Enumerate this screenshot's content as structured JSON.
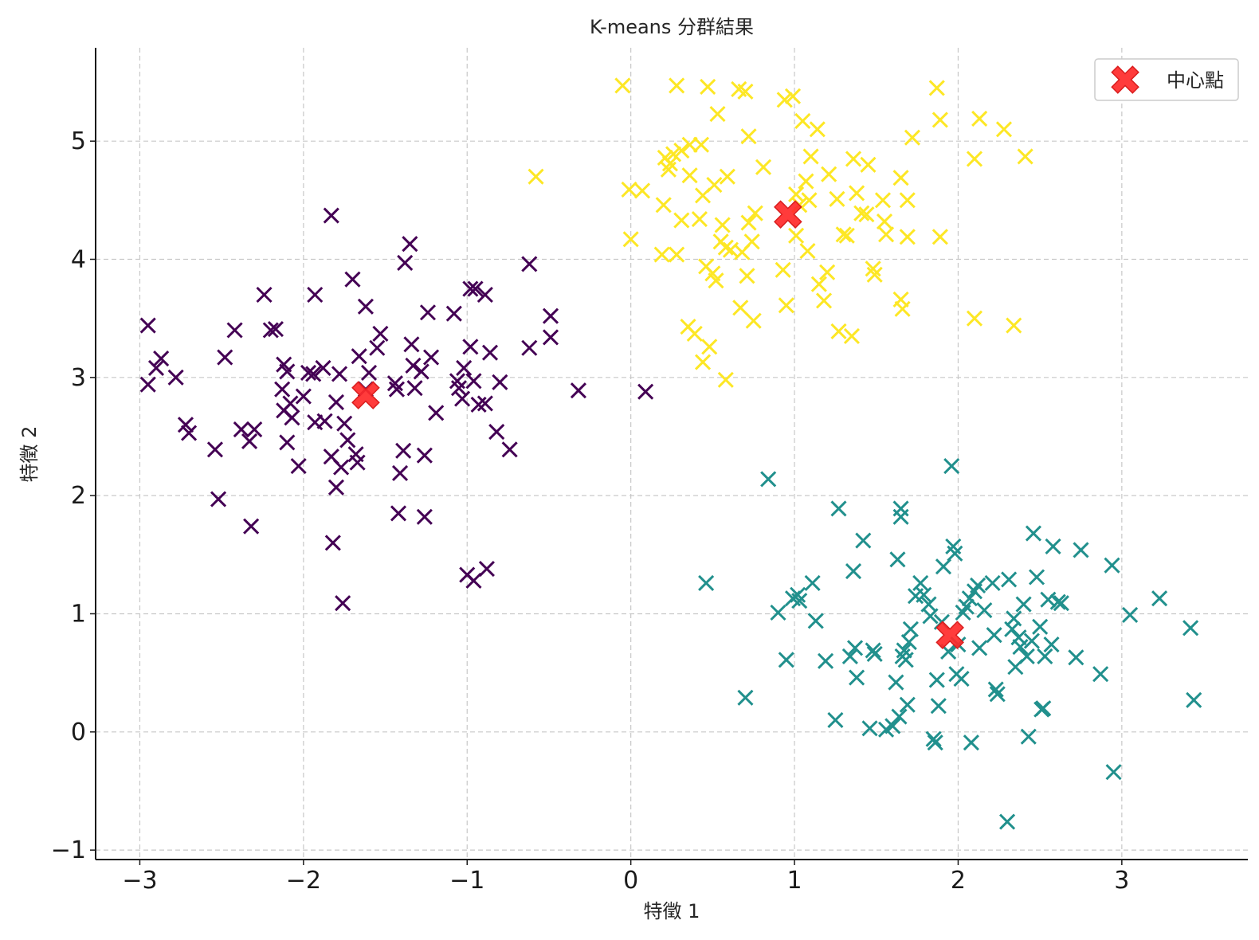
{
  "chart_data": {
    "type": "scatter",
    "title": "K-means 分群結果",
    "xlabel": "特徵 1",
    "ylabel": "特徵 2",
    "xlim": [
      -3.27,
      3.77
    ],
    "ylim": [
      -1.08,
      5.79
    ],
    "xticks": [
      -3,
      -2,
      -1,
      0,
      1,
      2,
      3
    ],
    "xtick_labels": [
      "−3",
      "−2",
      "−1",
      "0",
      "1",
      "2",
      "3"
    ],
    "yticks": [
      -1,
      0,
      1,
      2,
      3,
      4,
      5
    ],
    "ytick_labels": [
      "−1",
      "0",
      "1",
      "2",
      "3",
      "4",
      "5"
    ],
    "grid": true,
    "legend_position": "top-right",
    "marker": "x",
    "clusters": [
      {
        "color": "#440154",
        "points": [
          [
            -2.95,
            3.44
          ],
          [
            -2.87,
            3.16
          ],
          [
            -2.9,
            3.08
          ],
          [
            -2.78,
            3.0
          ],
          [
            -2.95,
            2.94
          ],
          [
            -2.72,
            2.6
          ],
          [
            -2.7,
            2.53
          ],
          [
            -2.54,
            2.39
          ],
          [
            -2.52,
            1.97
          ],
          [
            -2.48,
            3.17
          ],
          [
            -2.42,
            3.4
          ],
          [
            -2.38,
            2.56
          ],
          [
            -2.33,
            2.46
          ],
          [
            -2.3,
            2.56
          ],
          [
            -2.32,
            1.74
          ],
          [
            -2.24,
            3.7
          ],
          [
            -2.2,
            3.4
          ],
          [
            -2.17,
            3.41
          ],
          [
            -2.13,
            2.9
          ],
          [
            -2.12,
            3.11
          ],
          [
            -2.12,
            2.72
          ],
          [
            -2.1,
            3.05
          ],
          [
            -2.1,
            2.45
          ],
          [
            -2.08,
            2.78
          ],
          [
            -2.07,
            2.66
          ],
          [
            -2.03,
            2.25
          ],
          [
            -2.0,
            2.84
          ],
          [
            -1.97,
            3.04
          ],
          [
            -1.93,
            3.7
          ],
          [
            -1.94,
            3.03
          ],
          [
            -1.93,
            2.62
          ],
          [
            -1.88,
            3.08
          ],
          [
            -1.87,
            2.63
          ],
          [
            -1.83,
            4.37
          ],
          [
            -1.83,
            2.33
          ],
          [
            -1.82,
            1.6
          ],
          [
            -1.8,
            2.79
          ],
          [
            -1.8,
            2.07
          ],
          [
            -1.78,
            3.03
          ],
          [
            -1.77,
            2.24
          ],
          [
            -1.76,
            1.09
          ],
          [
            -1.75,
            2.61
          ],
          [
            -1.73,
            2.47
          ],
          [
            -1.7,
            3.83
          ],
          [
            -1.68,
            2.35
          ],
          [
            -1.67,
            2.28
          ],
          [
            -1.66,
            3.18
          ],
          [
            -1.62,
            3.6
          ],
          [
            -1.62,
            2.9
          ],
          [
            -1.6,
            3.04
          ],
          [
            -1.55,
            3.25
          ],
          [
            -1.53,
            3.37
          ],
          [
            -1.44,
            2.95
          ],
          [
            -1.43,
            2.9
          ],
          [
            -1.42,
            1.85
          ],
          [
            -1.41,
            2.19
          ],
          [
            -1.39,
            2.38
          ],
          [
            -1.38,
            3.97
          ],
          [
            -1.35,
            4.13
          ],
          [
            -1.34,
            3.28
          ],
          [
            -1.33,
            3.1
          ],
          [
            -1.32,
            2.91
          ],
          [
            -1.28,
            3.05
          ],
          [
            -1.26,
            2.34
          ],
          [
            -1.26,
            1.82
          ],
          [
            -1.24,
            3.55
          ],
          [
            -1.22,
            3.17
          ],
          [
            -1.19,
            2.7
          ],
          [
            -1.08,
            3.54
          ],
          [
            -1.06,
            2.97
          ],
          [
            -1.05,
            2.91
          ],
          [
            -1.03,
            2.82
          ],
          [
            -1.02,
            3.08
          ],
          [
            -1.0,
            1.33
          ],
          [
            -0.98,
            3.75
          ],
          [
            -0.98,
            3.26
          ],
          [
            -0.96,
            2.97
          ],
          [
            -0.95,
            3.75
          ],
          [
            -0.96,
            1.28
          ],
          [
            -0.93,
            2.77
          ],
          [
            -0.89,
            3.7
          ],
          [
            -0.89,
            2.78
          ],
          [
            -0.88,
            1.38
          ],
          [
            -0.86,
            3.21
          ],
          [
            -0.82,
            2.54
          ],
          [
            -0.8,
            2.96
          ],
          [
            -0.74,
            2.39
          ],
          [
            -0.62,
            3.96
          ],
          [
            -0.62,
            3.25
          ],
          [
            -0.49,
            3.52
          ],
          [
            -0.49,
            3.34
          ],
          [
            -0.32,
            2.89
          ],
          [
            0.09,
            2.88
          ]
        ]
      },
      {
        "color": "#21908d",
        "points": [
          [
            0.46,
            1.26
          ],
          [
            0.7,
            0.29
          ],
          [
            0.84,
            2.14
          ],
          [
            0.9,
            1.01
          ],
          [
            0.95,
            0.61
          ],
          [
            0.99,
            1.13
          ],
          [
            1.02,
            1.16
          ],
          [
            1.03,
            1.11
          ],
          [
            1.11,
            1.26
          ],
          [
            1.13,
            0.94
          ],
          [
            1.19,
            0.6
          ],
          [
            1.25,
            0.1
          ],
          [
            1.27,
            1.89
          ],
          [
            1.34,
            0.64
          ],
          [
            1.36,
            1.36
          ],
          [
            1.37,
            0.71
          ],
          [
            1.38,
            0.46
          ],
          [
            1.42,
            1.62
          ],
          [
            1.46,
            0.03
          ],
          [
            1.48,
            0.69
          ],
          [
            1.49,
            0.66
          ],
          [
            1.56,
            0.02
          ],
          [
            1.6,
            0.05
          ],
          [
            1.62,
            0.42
          ],
          [
            1.63,
            1.46
          ],
          [
            1.64,
            0.13
          ],
          [
            1.65,
            1.89
          ],
          [
            1.65,
            1.82
          ],
          [
            1.66,
            0.64
          ],
          [
            1.67,
            0.69
          ],
          [
            1.68,
            0.61
          ],
          [
            1.69,
            0.23
          ],
          [
            1.7,
            0.76
          ],
          [
            1.71,
            0.87
          ],
          [
            1.74,
            1.15
          ],
          [
            1.77,
            1.26
          ],
          [
            1.79,
            1.16
          ],
          [
            1.82,
            1.08
          ],
          [
            1.83,
            0.98
          ],
          [
            1.85,
            -0.06
          ],
          [
            1.86,
            -0.09
          ],
          [
            1.87,
            0.44
          ],
          [
            1.88,
            0.22
          ],
          [
            1.9,
            0.93
          ],
          [
            1.91,
            1.4
          ],
          [
            1.94,
            0.68
          ],
          [
            1.96,
            2.25
          ],
          [
            1.97,
            1.57
          ],
          [
            1.98,
            1.51
          ],
          [
            1.99,
            0.49
          ],
          [
            2.0,
            0.74
          ],
          [
            2.02,
            0.45
          ],
          [
            2.03,
            1.01
          ],
          [
            2.05,
            1.06
          ],
          [
            2.07,
            1.13
          ],
          [
            2.08,
            -0.09
          ],
          [
            2.1,
            1.19
          ],
          [
            2.12,
            1.24
          ],
          [
            2.13,
            0.71
          ],
          [
            2.16,
            1.03
          ],
          [
            2.21,
            1.26
          ],
          [
            2.22,
            0.82
          ],
          [
            2.23,
            0.36
          ],
          [
            2.24,
            0.32
          ],
          [
            2.3,
            -0.76
          ],
          [
            2.31,
            1.29
          ],
          [
            2.33,
            0.87
          ],
          [
            2.34,
            0.96
          ],
          [
            2.35,
            0.55
          ],
          [
            2.37,
            0.8
          ],
          [
            2.38,
            0.72
          ],
          [
            2.4,
            1.08
          ],
          [
            2.42,
            0.64
          ],
          [
            2.43,
            -0.04
          ],
          [
            2.45,
            0.77
          ],
          [
            2.46,
            1.68
          ],
          [
            2.48,
            1.31
          ],
          [
            2.5,
            0.89
          ],
          [
            2.51,
            0.19
          ],
          [
            2.52,
            0.2
          ],
          [
            2.53,
            0.64
          ],
          [
            2.55,
            1.12
          ],
          [
            2.57,
            0.74
          ],
          [
            2.58,
            1.57
          ],
          [
            2.61,
            1.1
          ],
          [
            2.63,
            1.09
          ],
          [
            2.72,
            0.63
          ],
          [
            2.75,
            1.54
          ],
          [
            2.87,
            0.49
          ],
          [
            2.94,
            1.41
          ],
          [
            2.95,
            -0.34
          ],
          [
            3.05,
            0.99
          ],
          [
            3.23,
            1.13
          ],
          [
            3.42,
            0.88
          ],
          [
            3.44,
            0.27
          ]
        ]
      },
      {
        "color": "#fde725",
        "points": [
          [
            -0.58,
            4.7
          ],
          [
            -0.05,
            5.47
          ],
          [
            -0.01,
            4.59
          ],
          [
            0.0,
            4.17
          ],
          [
            0.07,
            4.58
          ],
          [
            0.19,
            4.04
          ],
          [
            0.2,
            4.46
          ],
          [
            0.21,
            4.86
          ],
          [
            0.23,
            4.76
          ],
          [
            0.24,
            4.81
          ],
          [
            0.26,
            4.89
          ],
          [
            0.28,
            5.47
          ],
          [
            0.28,
            4.04
          ],
          [
            0.31,
            4.33
          ],
          [
            0.31,
            4.92
          ],
          [
            0.35,
            3.43
          ],
          [
            0.36,
            4.71
          ],
          [
            0.36,
            4.97
          ],
          [
            0.39,
            3.37
          ],
          [
            0.42,
            4.34
          ],
          [
            0.43,
            4.97
          ],
          [
            0.44,
            3.13
          ],
          [
            0.44,
            4.54
          ],
          [
            0.46,
            3.94
          ],
          [
            0.47,
            5.46
          ],
          [
            0.48,
            3.26
          ],
          [
            0.5,
            3.88
          ],
          [
            0.51,
            4.63
          ],
          [
            0.52,
            3.82
          ],
          [
            0.53,
            5.23
          ],
          [
            0.55,
            4.15
          ],
          [
            0.56,
            4.29
          ],
          [
            0.58,
            4.1
          ],
          [
            0.58,
            2.98
          ],
          [
            0.59,
            4.7
          ],
          [
            0.61,
            4.08
          ],
          [
            0.67,
            3.59
          ],
          [
            0.66,
            5.44
          ],
          [
            0.68,
            4.06
          ],
          [
            0.7,
            5.42
          ],
          [
            0.71,
            3.86
          ],
          [
            0.72,
            5.04
          ],
          [
            0.72,
            4.31
          ],
          [
            0.74,
            4.15
          ],
          [
            0.75,
            3.48
          ],
          [
            0.76,
            4.39
          ],
          [
            0.81,
            4.78
          ],
          [
            0.93,
            3.91
          ],
          [
            0.94,
            5.35
          ],
          [
            0.95,
            3.61
          ],
          [
            0.99,
            5.38
          ],
          [
            1.01,
            4.55
          ],
          [
            1.01,
            4.2
          ],
          [
            1.03,
            4.46
          ],
          [
            1.05,
            5.17
          ],
          [
            1.07,
            4.66
          ],
          [
            1.08,
            4.07
          ],
          [
            1.09,
            4.5
          ],
          [
            1.1,
            4.87
          ],
          [
            1.14,
            5.1
          ],
          [
            1.15,
            3.79
          ],
          [
            1.18,
            3.65
          ],
          [
            1.2,
            3.89
          ],
          [
            1.21,
            4.72
          ],
          [
            1.26,
            4.51
          ],
          [
            1.27,
            3.39
          ],
          [
            1.3,
            4.21
          ],
          [
            1.32,
            4.2
          ],
          [
            1.35,
            3.35
          ],
          [
            1.36,
            4.85
          ],
          [
            1.38,
            4.56
          ],
          [
            1.41,
            4.39
          ],
          [
            1.45,
            4.8
          ],
          [
            1.44,
            4.38
          ],
          [
            1.48,
            3.92
          ],
          [
            1.49,
            3.87
          ],
          [
            1.54,
            4.5
          ],
          [
            1.55,
            4.32
          ],
          [
            1.56,
            4.21
          ],
          [
            1.65,
            3.66
          ],
          [
            1.65,
            4.69
          ],
          [
            1.66,
            3.58
          ],
          [
            1.69,
            4.5
          ],
          [
            1.69,
            4.19
          ],
          [
            1.72,
            5.03
          ],
          [
            1.87,
            5.45
          ],
          [
            1.89,
            5.18
          ],
          [
            1.89,
            4.19
          ],
          [
            2.1,
            4.85
          ],
          [
            2.1,
            3.5
          ],
          [
            2.13,
            5.19
          ],
          [
            2.28,
            5.1
          ],
          [
            2.34,
            3.44
          ],
          [
            2.41,
            4.87
          ]
        ]
      }
    ],
    "centroids": {
      "color": "#ff2a2a",
      "label": "中心點",
      "points": [
        [
          -1.62,
          2.85
        ],
        [
          0.96,
          4.38
        ],
        [
          1.95,
          0.82
        ]
      ]
    }
  }
}
